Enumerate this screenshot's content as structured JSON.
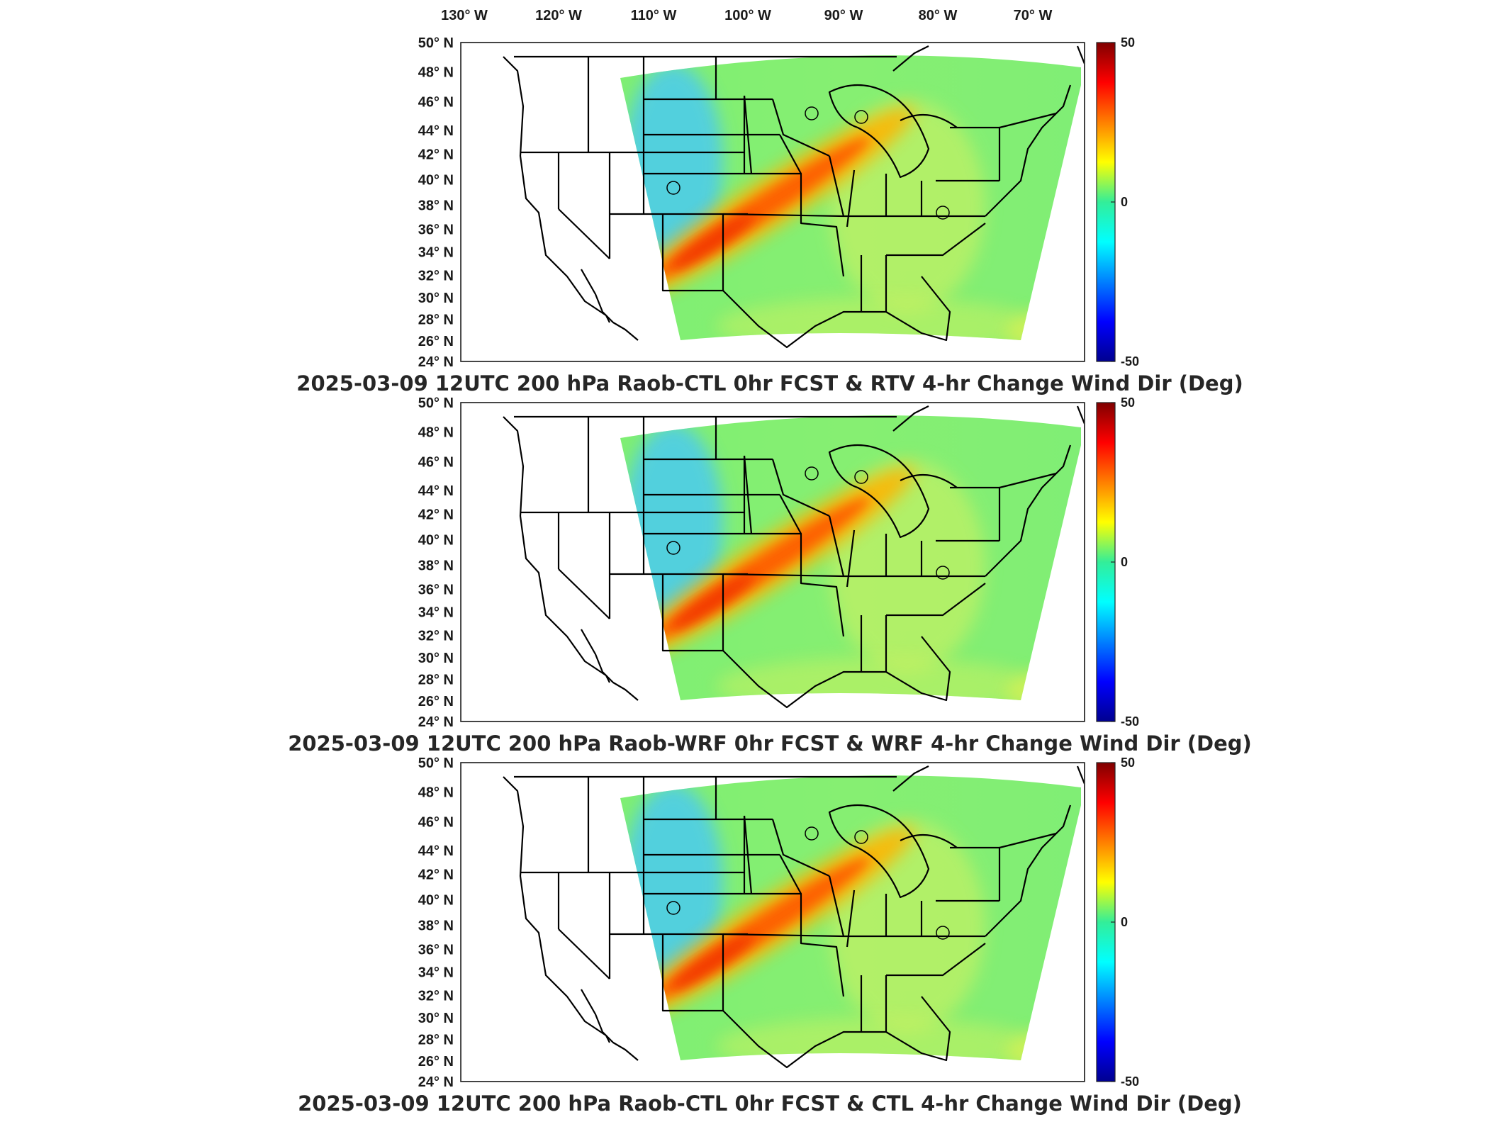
{
  "lon_labels": [
    "130",
    "120",
    "110",
    "100",
    "90",
    "80",
    "70"
  ],
  "lon_suffix": "W",
  "lat_labels": [
    "50",
    "48",
    "46",
    "44",
    "42",
    "40",
    "38",
    "36",
    "34",
    "32",
    "30",
    "28",
    "26",
    "24"
  ],
  "lat_suffix": "N",
  "degree_symbol": "°",
  "colorbar": {
    "max": "50",
    "mid": "0",
    "min": "-50",
    "colormap": "jet"
  },
  "panels": [
    {
      "title": "2025-03-09 12UTC 200 hPa Raob-CTL 0hr FCST & RTV 4-hr Change Wind Dir (Deg)"
    },
    {
      "title": "2025-03-09 12UTC 200 hPa Raob-WRF 0hr FCST & WRF 4-hr Change Wind Dir (Deg)"
    },
    {
      "title": "2025-03-09 12UTC 200 hPa Raob-CTL 0hr FCST & CTL 4-hr Change Wind Dir (Deg)"
    }
  ]
}
